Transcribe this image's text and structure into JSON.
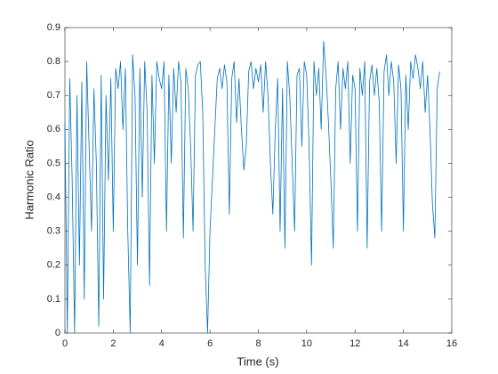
{
  "chart_data": {
    "type": "line",
    "xlabel": "Time (s)",
    "ylabel": "Harmonic Ratio",
    "x": [
      0,
      0.1,
      0.2,
      0.3,
      0.4,
      0.5,
      0.6,
      0.7,
      0.8,
      0.9,
      1,
      1.1,
      1.2,
      1.3,
      1.4,
      1.5,
      1.6,
      1.7,
      1.8,
      1.9,
      2,
      2.1,
      2.2,
      2.3,
      2.4,
      2.5,
      2.6,
      2.7,
      2.8,
      2.9,
      3,
      3.1,
      3.2,
      3.3,
      3.4,
      3.5,
      3.6,
      3.7,
      3.8,
      3.9,
      4,
      4.1,
      4.2,
      4.3,
      4.4,
      4.5,
      4.6,
      4.7,
      4.8,
      4.9,
      5,
      5.1,
      5.2,
      5.3,
      5.4,
      5.5,
      5.6,
      5.7,
      5.8,
      5.9,
      6,
      6.1,
      6.2,
      6.3,
      6.4,
      6.5,
      6.6,
      6.7,
      6.8,
      6.9,
      7,
      7.1,
      7.2,
      7.3,
      7.4,
      7.5,
      7.6,
      7.7,
      7.8,
      7.9,
      8,
      8.1,
      8.2,
      8.3,
      8.4,
      8.5,
      8.6,
      8.7,
      8.8,
      8.9,
      9,
      9.1,
      9.2,
      9.3,
      9.4,
      9.5,
      9.6,
      9.7,
      9.8,
      9.9,
      10,
      10.1,
      10.2,
      10.3,
      10.4,
      10.5,
      10.6,
      10.7,
      10.8,
      10.9,
      11,
      11.1,
      11.2,
      11.3,
      11.4,
      11.5,
      11.6,
      11.7,
      11.8,
      11.9,
      12,
      12.1,
      12.2,
      12.3,
      12.4,
      12.5,
      12.6,
      12.7,
      12.8,
      12.9,
      13,
      13.1,
      13.2,
      13.3,
      13.4,
      13.5,
      13.6,
      13.7,
      13.8,
      13.9,
      14,
      14.1,
      14.2,
      14.3,
      14.4,
      14.5,
      14.6,
      14.7,
      14.8,
      14.9,
      15,
      15.1,
      15.2,
      15.3,
      15.4,
      15.5
    ],
    "series": [
      {
        "color": "#0072bd",
        "values": [
          0.62,
          0.0,
          0.75,
          0.45,
          0.0,
          0.7,
          0.2,
          0.74,
          0.1,
          0.8,
          0.55,
          0.3,
          0.72,
          0.5,
          0.02,
          0.76,
          0.1,
          0.7,
          0.45,
          0.75,
          0.3,
          0.78,
          0.72,
          0.8,
          0.6,
          0.78,
          0.3,
          0.0,
          0.82,
          0.7,
          0.2,
          0.78,
          0.4,
          0.8,
          0.65,
          0.14,
          0.76,
          0.5,
          0.8,
          0.75,
          0.72,
          0.8,
          0.3,
          0.76,
          0.5,
          0.78,
          0.65,
          0.8,
          0.74,
          0.28,
          0.78,
          0.72,
          0.55,
          0.3,
          0.76,
          0.79,
          0.8,
          0.65,
          0.2,
          0.0,
          0.3,
          0.45,
          0.6,
          0.75,
          0.78,
          0.72,
          0.79,
          0.74,
          0.35,
          0.75,
          0.8,
          0.62,
          0.75,
          0.6,
          0.48,
          0.55,
          0.77,
          0.8,
          0.72,
          0.78,
          0.74,
          0.79,
          0.65,
          0.8,
          0.7,
          0.5,
          0.35,
          0.6,
          0.75,
          0.3,
          0.72,
          0.25,
          0.8,
          0.7,
          0.5,
          0.3,
          0.76,
          0.78,
          0.55,
          0.8,
          0.76,
          0.55,
          0.2,
          0.8,
          0.7,
          0.78,
          0.6,
          0.86,
          0.76,
          0.62,
          0.45,
          0.25,
          0.72,
          0.8,
          0.6,
          0.78,
          0.72,
          0.8,
          0.5,
          0.76,
          0.72,
          0.3,
          0.78,
          0.7,
          0.8,
          0.25,
          0.74,
          0.79,
          0.7,
          0.78,
          0.68,
          0.3,
          0.77,
          0.82,
          0.7,
          0.8,
          0.74,
          0.5,
          0.79,
          0.72,
          0.3,
          0.76,
          0.6,
          0.8,
          0.75,
          0.82,
          0.78,
          0.72,
          0.8,
          0.65,
          0.76,
          0.6,
          0.38,
          0.28,
          0.72,
          0.77
        ]
      }
    ],
    "xlim": [
      0,
      16
    ],
    "xticks": [
      0,
      2,
      4,
      6,
      8,
      10,
      12,
      14,
      16
    ],
    "ylim": [
      0,
      0.9
    ],
    "yticks": [
      0,
      0.1,
      0.2,
      0.3,
      0.4,
      0.5,
      0.6,
      0.7,
      0.8,
      0.9
    ]
  }
}
